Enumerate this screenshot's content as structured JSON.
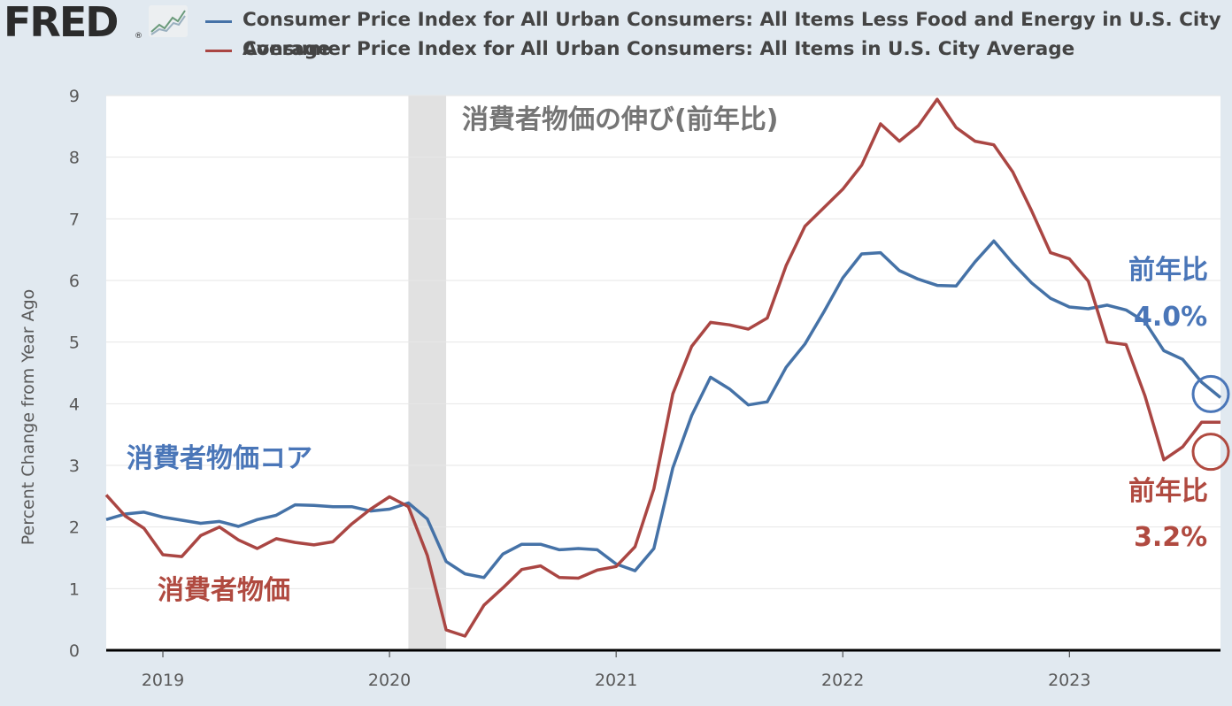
{
  "header": {
    "logo": "FRED",
    "logo_mark": "®",
    "graph_icon": "line-graph-icon"
  },
  "legend": [
    {
      "name": "Consumer Price Index for All Urban Consumers: All Items Less Food and Energy in U.S. City",
      "name_cont": "Average",
      "color": "#4572a7"
    },
    {
      "name": "Consumer Price Index for All Urban Consumers: All Items in U.S. City Average",
      "color": "#aa4643"
    }
  ],
  "annotations": {
    "title_jp": "消費者物価の伸び(前年比)",
    "core_label": "消費者物価コア",
    "cpi_label": "消費者物価",
    "core_yoy_label": "前年比",
    "core_yoy_value": "4.0%",
    "cpi_yoy_label": "前年比",
    "cpi_yoy_value": "3.2%"
  },
  "chart_data": {
    "type": "line",
    "ylabel": "Percent Change from Year Ago",
    "ylim": [
      0,
      9
    ],
    "yticks": [
      "0",
      "1",
      "2",
      "3",
      "4",
      "5",
      "6",
      "7",
      "8",
      "9"
    ],
    "xticks": [
      {
        "label": "2019",
        "date": "2019-01"
      },
      {
        "label": "2020",
        "date": "2020-01"
      },
      {
        "label": "2021",
        "date": "2021-01"
      },
      {
        "label": "2022",
        "date": "2022-01"
      },
      {
        "label": "2023",
        "date": "2023-01"
      }
    ],
    "x_range": [
      "2018-10",
      "2023-09"
    ],
    "recession": {
      "start": "2020-02",
      "end": "2020-04"
    },
    "grid": true,
    "x": [
      "2018-10",
      "2018-11",
      "2018-12",
      "2019-01",
      "2019-02",
      "2019-03",
      "2019-04",
      "2019-05",
      "2019-06",
      "2019-07",
      "2019-08",
      "2019-09",
      "2019-10",
      "2019-11",
      "2019-12",
      "2020-01",
      "2020-02",
      "2020-03",
      "2020-04",
      "2020-05",
      "2020-06",
      "2020-07",
      "2020-08",
      "2020-09",
      "2020-10",
      "2020-11",
      "2020-12",
      "2021-01",
      "2021-02",
      "2021-03",
      "2021-04",
      "2021-05",
      "2021-06",
      "2021-07",
      "2021-08",
      "2021-09",
      "2021-10",
      "2021-11",
      "2021-12",
      "2022-01",
      "2022-02",
      "2022-03",
      "2022-04",
      "2022-05",
      "2022-06",
      "2022-07",
      "2022-08",
      "2022-09",
      "2022-10",
      "2022-11",
      "2022-12",
      "2023-01",
      "2023-02",
      "2023-03",
      "2023-04",
      "2023-05",
      "2023-06",
      "2023-07",
      "2023-08",
      "2023-09"
    ],
    "series": [
      {
        "name": "Consumer Price Index for All Urban Consumers: All Items Less Food and Energy in U.S. City Average",
        "color": "#4572a7",
        "values": [
          2.12,
          2.21,
          2.24,
          2.16,
          2.11,
          2.06,
          2.09,
          2.01,
          2.12,
          2.19,
          2.36,
          2.35,
          2.33,
          2.33,
          2.26,
          2.29,
          2.39,
          2.13,
          1.44,
          1.24,
          1.18,
          1.56,
          1.72,
          1.72,
          1.63,
          1.65,
          1.63,
          1.4,
          1.29,
          1.65,
          2.96,
          3.81,
          4.43,
          4.24,
          3.98,
          4.03,
          4.59,
          4.97,
          5.49,
          6.04,
          6.43,
          6.45,
          6.16,
          6.02,
          5.92,
          5.91,
          6.3,
          6.64,
          6.28,
          5.96,
          5.71,
          5.57,
          5.54,
          5.6,
          5.52,
          5.33,
          4.86,
          4.72,
          4.35,
          4.1
        ]
      },
      {
        "name": "Consumer Price Index for All Urban Consumers: All Items in U.S. City Average",
        "color": "#aa4643",
        "values": [
          2.52,
          2.18,
          1.98,
          1.55,
          1.52,
          1.86,
          2.0,
          1.79,
          1.65,
          1.81,
          1.75,
          1.71,
          1.76,
          2.05,
          2.29,
          2.49,
          2.33,
          1.54,
          0.33,
          0.23,
          0.73,
          1.01,
          1.31,
          1.37,
          1.18,
          1.17,
          1.3,
          1.36,
          1.68,
          2.62,
          4.16,
          4.93,
          5.32,
          5.28,
          5.21,
          5.39,
          6.24,
          6.88,
          7.18,
          7.48,
          7.87,
          8.54,
          8.26,
          8.51,
          8.94,
          8.48,
          8.26,
          8.2,
          7.76,
          7.13,
          6.45,
          6.35,
          5.99,
          5.0,
          4.96,
          4.13,
          3.09,
          3.3,
          3.7,
          3.7
        ]
      }
    ]
  }
}
